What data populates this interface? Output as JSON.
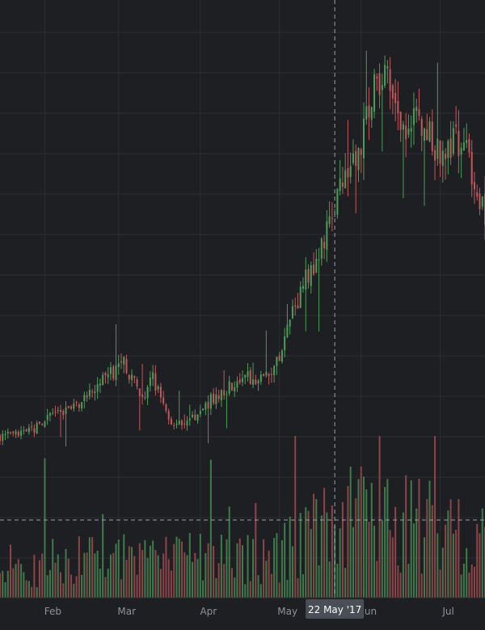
{
  "chart_data": {
    "type": "candlestick",
    "title": "",
    "xlabel": "",
    "ylabel": "",
    "x_ticks": [
      "Feb",
      "Mar",
      "Apr",
      "May",
      "Jun",
      "Jul"
    ],
    "crosshair_label": "22 May '17",
    "ylim": [
      0,
      100
    ],
    "grid": true,
    "colors": {
      "up": "#4e9c5b",
      "down": "#c2575c",
      "volume_up": "#3f7a4b",
      "volume_down": "#8c4448",
      "background": "#1e1f22"
    },
    "series": [
      {
        "kind": "price",
        "key_points": [
          {
            "date": "2017-01-15",
            "value": 9
          },
          {
            "date": "2017-01-25",
            "value": 9.5
          },
          {
            "date": "2017-02-05",
            "value": 14
          },
          {
            "date": "2017-02-12",
            "value": 15
          },
          {
            "date": "2017-02-22",
            "value": 21
          },
          {
            "date": "2017-03-03",
            "value": 25
          },
          {
            "date": "2017-03-10",
            "value": 18
          },
          {
            "date": "2017-03-14",
            "value": 22
          },
          {
            "date": "2017-03-20",
            "value": 13
          },
          {
            "date": "2017-03-25",
            "value": 11
          },
          {
            "date": "2017-04-05",
            "value": 17
          },
          {
            "date": "2017-04-12",
            "value": 20
          },
          {
            "date": "2017-04-18",
            "value": 22
          },
          {
            "date": "2017-04-25",
            "value": 22
          },
          {
            "date": "2017-05-01",
            "value": 26
          },
          {
            "date": "2017-05-05",
            "value": 34
          },
          {
            "date": "2017-05-10",
            "value": 43
          },
          {
            "date": "2017-05-15",
            "value": 46
          },
          {
            "date": "2017-05-18",
            "value": 53
          },
          {
            "date": "2017-05-24",
            "value": 65
          },
          {
            "date": "2017-05-28",
            "value": 68
          },
          {
            "date": "2017-06-03",
            "value": 78
          },
          {
            "date": "2017-06-07",
            "value": 88
          },
          {
            "date": "2017-06-12",
            "value": 86
          },
          {
            "date": "2017-06-16",
            "value": 74
          },
          {
            "date": "2017-06-22",
            "value": 80
          },
          {
            "date": "2017-06-26",
            "value": 76
          },
          {
            "date": "2017-07-01",
            "value": 72
          },
          {
            "date": "2017-07-06",
            "value": 74
          },
          {
            "date": "2017-07-11",
            "value": 72
          },
          {
            "date": "2017-07-15",
            "value": 64
          },
          {
            "date": "2017-07-18",
            "value": 58
          }
        ]
      },
      {
        "kind": "volume",
        "key_points": [
          {
            "date": "2017-01-15",
            "value": 8
          },
          {
            "date": "2017-02-15",
            "value": 9
          },
          {
            "date": "2017-03-15",
            "value": 10
          },
          {
            "date": "2017-04-15",
            "value": 9
          },
          {
            "date": "2017-05-10",
            "value": 14
          },
          {
            "date": "2017-05-25",
            "value": 20
          },
          {
            "date": "2017-06-15",
            "value": 20
          },
          {
            "date": "2017-07-05",
            "value": 15
          },
          {
            "date": "2017-07-18",
            "value": 14
          }
        ]
      }
    ]
  }
}
